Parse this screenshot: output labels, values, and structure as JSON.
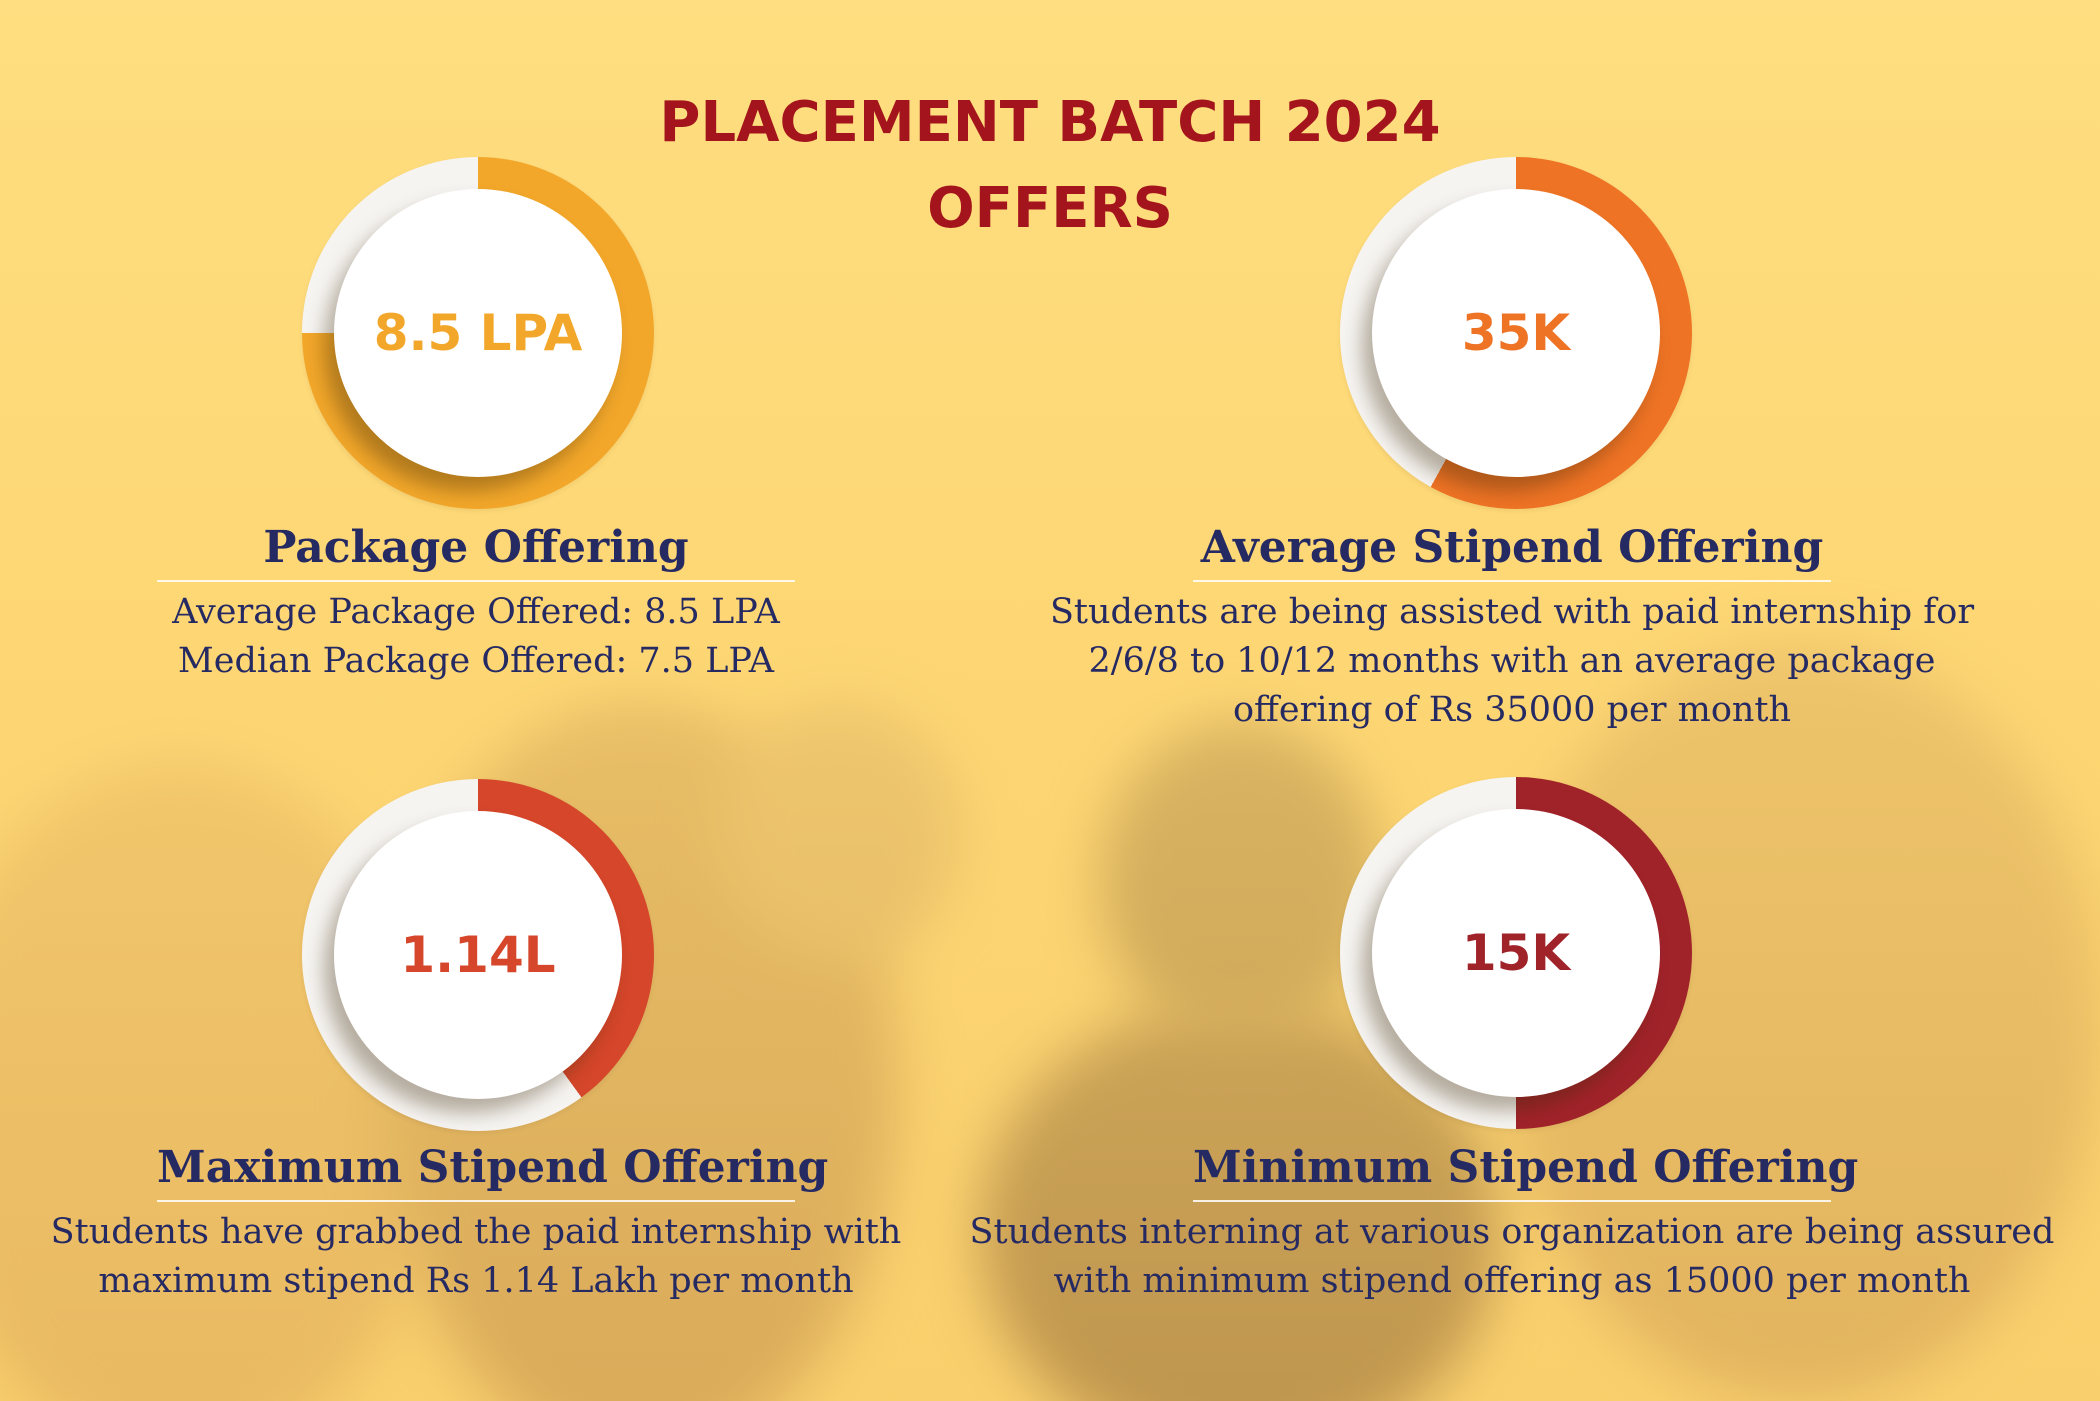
{
  "title": {
    "line1": "PLACEMENT BATCH 2024",
    "line2": "OFFERS"
  },
  "colors": {
    "title": "#a3141c",
    "text": "#262a63",
    "background": "#fdd777",
    "ring_track": "#f6f4f1"
  },
  "cards": [
    {
      "value": "8.5 LPA",
      "fill_fraction": 0.75,
      "fill_start": "top",
      "color": "#f2a72a",
      "heading": "Package Offering",
      "lines": [
        "Average Package Offered: 8.5 LPA",
        "Median Package Offered: 7.5 LPA"
      ]
    },
    {
      "value": "35K",
      "fill_fraction": 0.58,
      "fill_start": "top",
      "color": "#ee7325",
      "heading": "Average Stipend Offering",
      "lines": [
        "Students are being assisted with paid internship for",
        "2/6/8 to 10/12 months with an average package",
        "offering of Rs 35000 per month"
      ]
    },
    {
      "value": "1.14L",
      "fill_fraction": 0.4,
      "fill_start": "top",
      "color": "#d5462a",
      "heading": "Maximum Stipend Offering",
      "lines": [
        "Students have grabbed the paid internship with",
        "maximum stipend Rs 1.14 Lakh per month"
      ]
    },
    {
      "value": "15K",
      "fill_fraction": 0.5,
      "fill_start": "top",
      "color": "#a1232a",
      "heading": "Minimum Stipend Offering",
      "lines": [
        "Students interning at various organization are being assured",
        "with minimum stipend offering as 15000 per month"
      ]
    }
  ]
}
